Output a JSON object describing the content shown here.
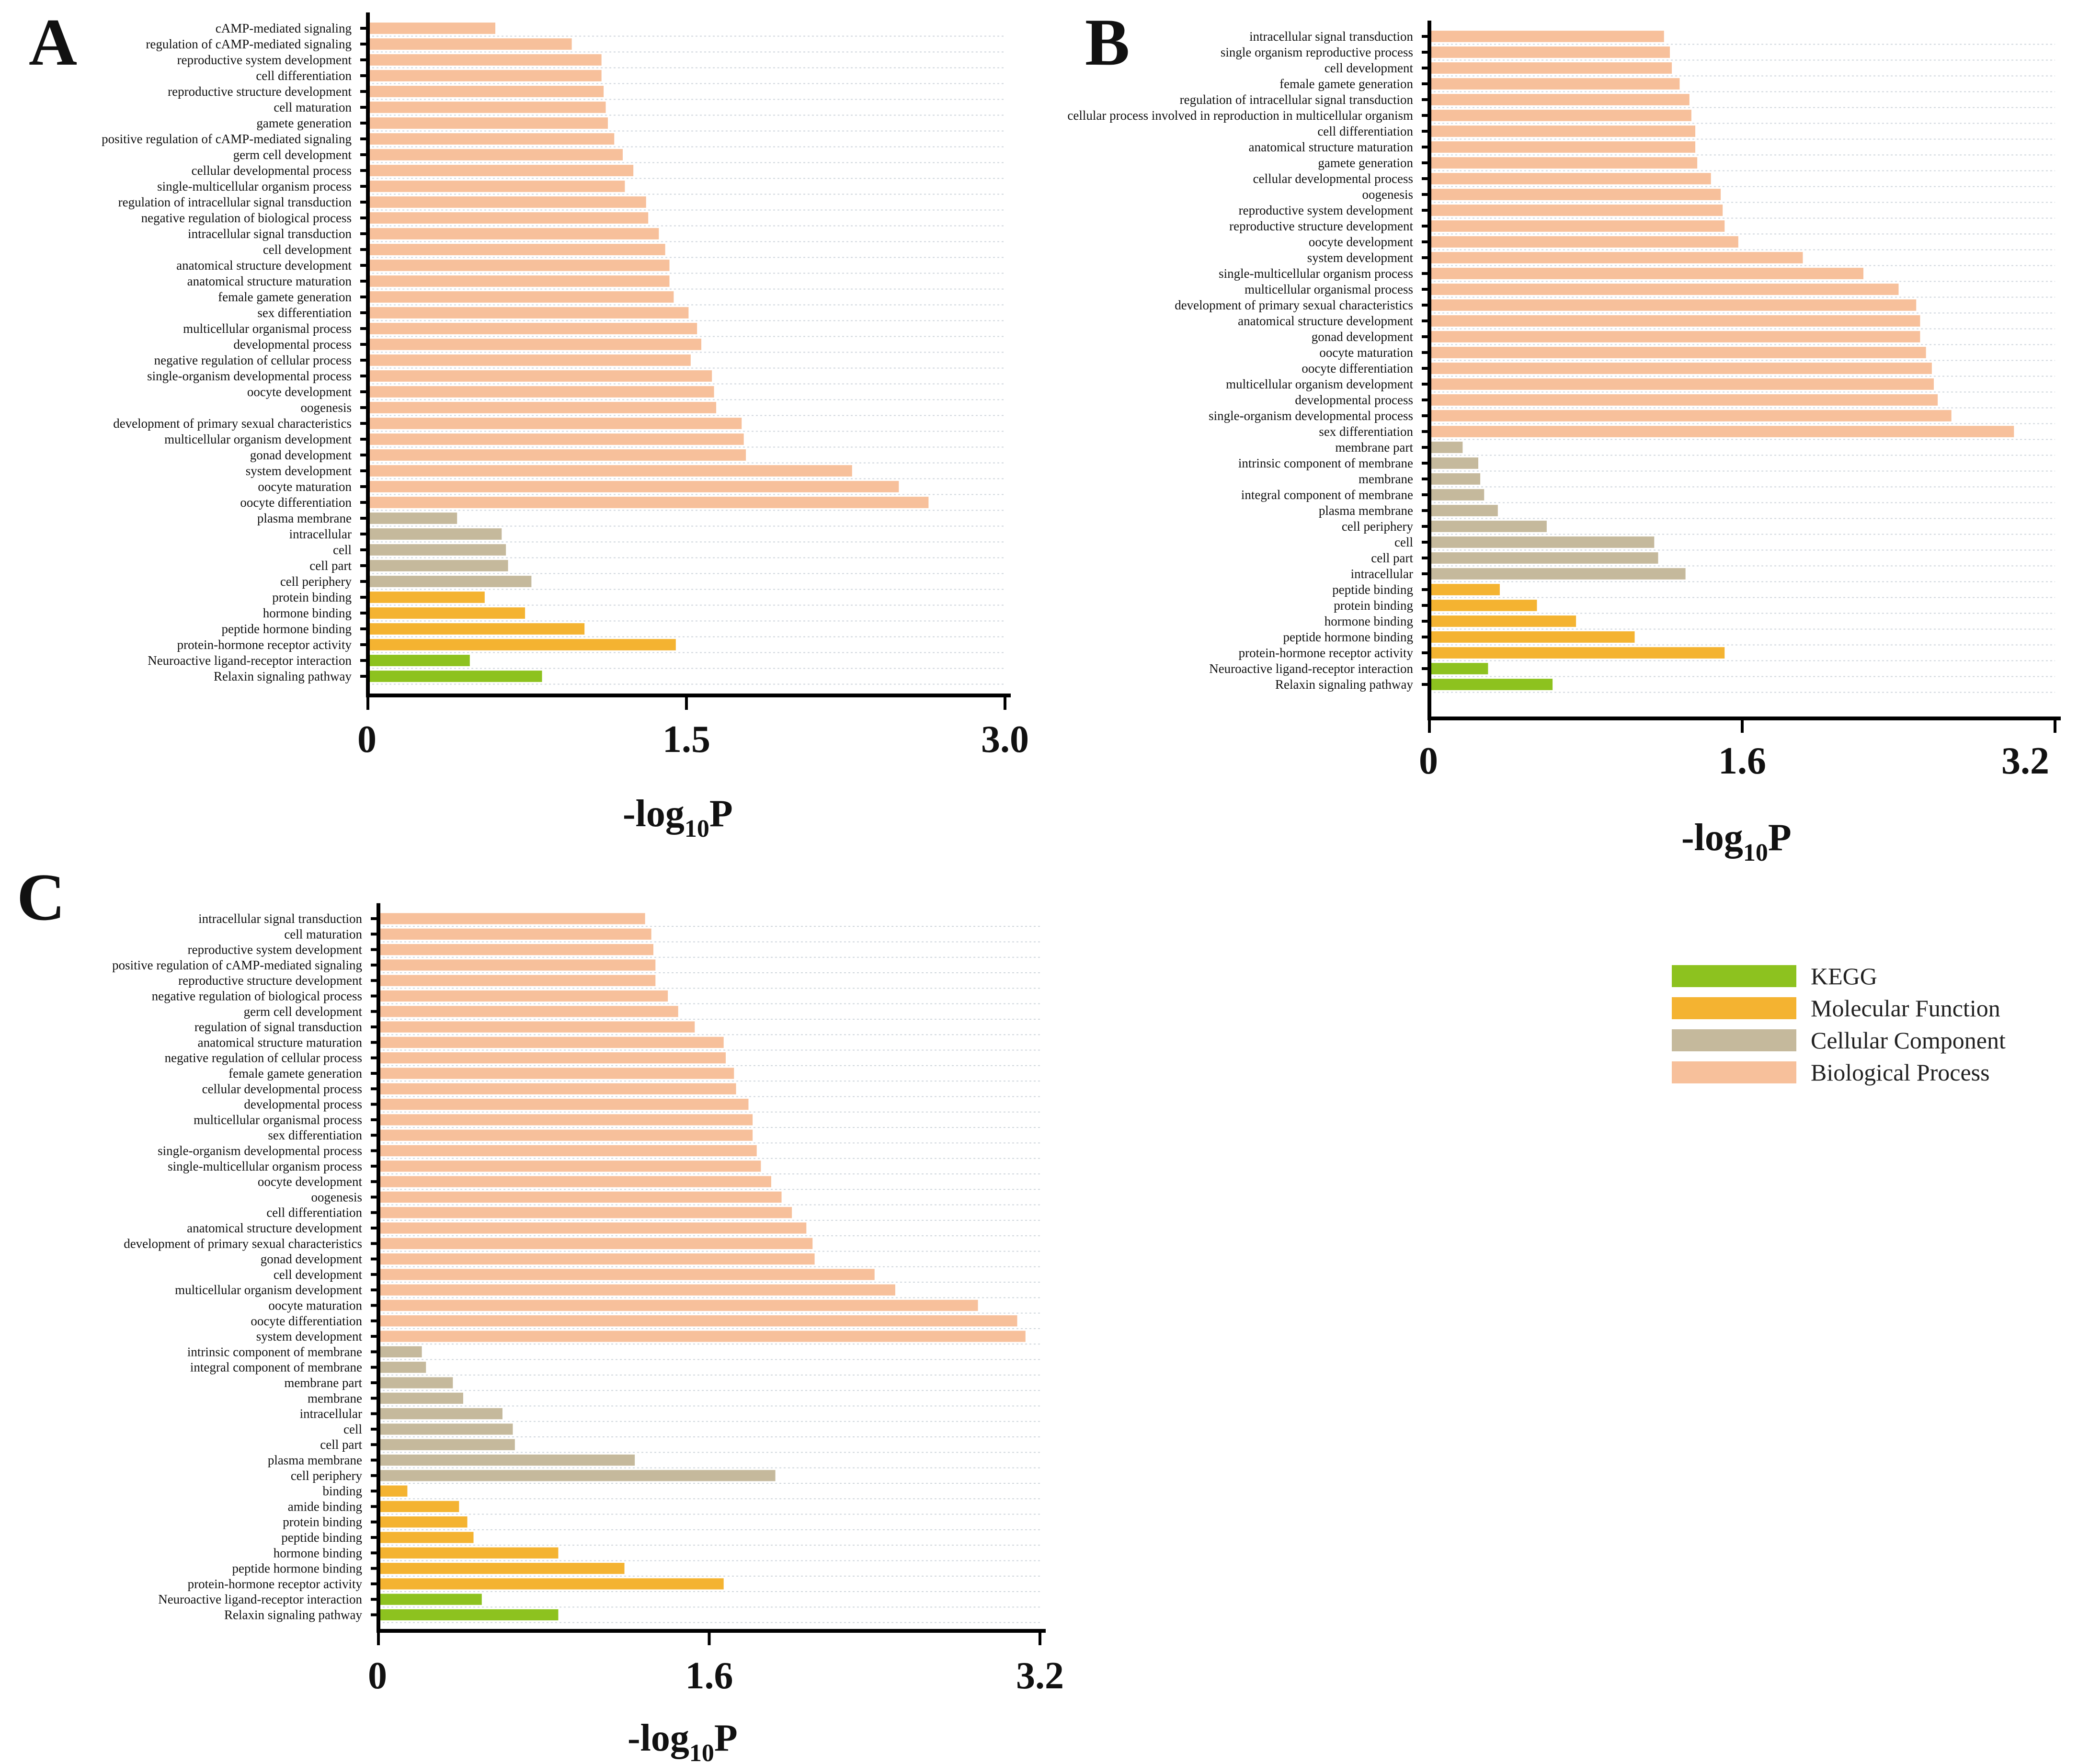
{
  "colors": {
    "KEGG": "#8dc21f",
    "Molecular Function": "#f4b331",
    "Cellular Component": "#c5b99c",
    "Biological Process": "#f7c09b"
  },
  "legend": {
    "entries": [
      "KEGG",
      "Molecular Function",
      "Cellular Component",
      "Biological Process"
    ]
  },
  "chart_data": [
    {
      "panel": "A",
      "type": "bar",
      "orientation": "horizontal",
      "xlabel": "-log10P",
      "xlabel_main": "-log",
      "xlabel_sub": "10",
      "xlabel_tail": "P",
      "xlim": [
        0,
        3.0
      ],
      "ticks": [
        0,
        1.5,
        3.0
      ],
      "tick_labels": [
        "0",
        "1.5",
        "3.0"
      ],
      "bars": [
        {
          "label": "cAMP-mediated signaling",
          "value": 0.6,
          "category": "Biological Process"
        },
        {
          "label": "regulation of cAMP-mediated signaling",
          "value": 0.96,
          "category": "Biological Process"
        },
        {
          "label": "reproductive system development",
          "value": 1.1,
          "category": "Biological Process"
        },
        {
          "label": "cell differentiation",
          "value": 1.1,
          "category": "Biological Process"
        },
        {
          "label": "reproductive structure development",
          "value": 1.11,
          "category": "Biological Process"
        },
        {
          "label": "cell maturation",
          "value": 1.12,
          "category": "Biological Process"
        },
        {
          "label": "gamete generation",
          "value": 1.13,
          "category": "Biological Process"
        },
        {
          "label": "positive regulation of cAMP-mediated signaling",
          "value": 1.16,
          "category": "Biological Process"
        },
        {
          "label": "germ cell development",
          "value": 1.2,
          "category": "Biological Process"
        },
        {
          "label": "cellular developmental process",
          "value": 1.25,
          "category": "Biological Process"
        },
        {
          "label": "single-multicellular organism process",
          "value": 1.21,
          "category": "Biological Process"
        },
        {
          "label": "regulation of intracellular signal transduction",
          "value": 1.31,
          "category": "Biological Process"
        },
        {
          "label": "negative regulation of biological process",
          "value": 1.32,
          "category": "Biological Process"
        },
        {
          "label": "intracellular signal transduction",
          "value": 1.37,
          "category": "Biological Process"
        },
        {
          "label": "cell development",
          "value": 1.4,
          "category": "Biological Process"
        },
        {
          "label": "anatomical structure development",
          "value": 1.42,
          "category": "Biological Process"
        },
        {
          "label": "anatomical structure maturation",
          "value": 1.42,
          "category": "Biological Process"
        },
        {
          "label": "female gamete generation",
          "value": 1.44,
          "category": "Biological Process"
        },
        {
          "label": "sex differentiation",
          "value": 1.51,
          "category": "Biological Process"
        },
        {
          "label": "multicellular organismal process",
          "value": 1.55,
          "category": "Biological Process"
        },
        {
          "label": "developmental process",
          "value": 1.57,
          "category": "Biological Process"
        },
        {
          "label": "negative regulation of cellular process",
          "value": 1.52,
          "category": "Biological Process"
        },
        {
          "label": "single-organism developmental process",
          "value": 1.62,
          "category": "Biological Process"
        },
        {
          "label": "oocyte development",
          "value": 1.63,
          "category": "Biological Process"
        },
        {
          "label": "oogenesis",
          "value": 1.64,
          "category": "Biological Process"
        },
        {
          "label": "development of primary sexual characteristics",
          "value": 1.76,
          "category": "Biological Process"
        },
        {
          "label": "multicellular organism development",
          "value": 1.77,
          "category": "Biological Process"
        },
        {
          "label": "gonad development",
          "value": 1.78,
          "category": "Biological Process"
        },
        {
          "label": "system development",
          "value": 2.28,
          "category": "Biological Process"
        },
        {
          "label": "oocyte maturation",
          "value": 2.5,
          "category": "Biological Process"
        },
        {
          "label": "oocyte differentiation",
          "value": 2.64,
          "category": "Biological Process"
        },
        {
          "label": "plasma membrane",
          "value": 0.42,
          "category": "Cellular Component"
        },
        {
          "label": "intracellular",
          "value": 0.63,
          "category": "Cellular Component"
        },
        {
          "label": "cell",
          "value": 0.65,
          "category": "Cellular Component"
        },
        {
          "label": "cell part",
          "value": 0.66,
          "category": "Cellular Component"
        },
        {
          "label": "cell periphery",
          "value": 0.77,
          "category": "Cellular Component"
        },
        {
          "label": "protein binding",
          "value": 0.55,
          "category": "Molecular Function"
        },
        {
          "label": "hormone binding",
          "value": 0.74,
          "category": "Molecular Function"
        },
        {
          "label": "peptide hormone binding",
          "value": 1.02,
          "category": "Molecular Function"
        },
        {
          "label": "protein-hormone receptor activity",
          "value": 1.45,
          "category": "Molecular Function"
        },
        {
          "label": "Neuroactive ligand-receptor interaction",
          "value": 0.48,
          "category": "KEGG"
        },
        {
          "label": "Relaxin signaling pathway",
          "value": 0.82,
          "category": "KEGG"
        }
      ]
    },
    {
      "panel": "B",
      "type": "bar",
      "orientation": "horizontal",
      "xlabel": "-log10P",
      "xlabel_main": "-log",
      "xlabel_sub": "10",
      "xlabel_tail": "P",
      "xlim": [
        0,
        3.2
      ],
      "ticks": [
        0,
        1.6,
        3.2
      ],
      "tick_labels": [
        "0",
        "1.6",
        "3.2"
      ],
      "bars": [
        {
          "label": "intracellular signal transduction",
          "value": 1.2,
          "category": "Biological Process"
        },
        {
          "label": "single organism reproductive process",
          "value": 1.23,
          "category": "Biological Process"
        },
        {
          "label": "cell development",
          "value": 1.24,
          "category": "Biological Process"
        },
        {
          "label": "female gamete generation",
          "value": 1.28,
          "category": "Biological Process"
        },
        {
          "label": "regulation of intracellular signal transduction",
          "value": 1.33,
          "category": "Biological Process"
        },
        {
          "label": "cellular process involved in reproduction in multicellular organism",
          "value": 1.34,
          "category": "Biological Process"
        },
        {
          "label": "cell differentiation",
          "value": 1.36,
          "category": "Biological Process"
        },
        {
          "label": "anatomical structure maturation",
          "value": 1.36,
          "category": "Biological Process"
        },
        {
          "label": "gamete generation",
          "value": 1.37,
          "category": "Biological Process"
        },
        {
          "label": "cellular developmental process",
          "value": 1.44,
          "category": "Biological Process"
        },
        {
          "label": "oogenesis",
          "value": 1.49,
          "category": "Biological Process"
        },
        {
          "label": "reproductive system development",
          "value": 1.5,
          "category": "Biological Process"
        },
        {
          "label": "reproductive structure development",
          "value": 1.51,
          "category": "Biological Process"
        },
        {
          "label": "oocyte development",
          "value": 1.58,
          "category": "Biological Process"
        },
        {
          "label": "system development",
          "value": 1.91,
          "category": "Biological Process"
        },
        {
          "label": "single-multicellular organism process",
          "value": 2.22,
          "category": "Biological Process"
        },
        {
          "label": "multicellular organismal process",
          "value": 2.4,
          "category": "Biological Process"
        },
        {
          "label": "development of primary sexual characteristics",
          "value": 2.49,
          "category": "Biological Process"
        },
        {
          "label": "anatomical structure development",
          "value": 2.51,
          "category": "Biological Process"
        },
        {
          "label": "gonad development",
          "value": 2.51,
          "category": "Biological Process"
        },
        {
          "label": "oocyte maturation",
          "value": 2.54,
          "category": "Biological Process"
        },
        {
          "label": "oocyte differentiation",
          "value": 2.57,
          "category": "Biological Process"
        },
        {
          "label": "multicellular organism development",
          "value": 2.58,
          "category": "Biological Process"
        },
        {
          "label": "developmental process",
          "value": 2.6,
          "category": "Biological Process"
        },
        {
          "label": "single-organism developmental process",
          "value": 2.67,
          "category": "Biological Process"
        },
        {
          "label": "sex differentiation",
          "value": 2.99,
          "category": "Biological Process"
        },
        {
          "label": "membrane part",
          "value": 0.17,
          "category": "Cellular Component"
        },
        {
          "label": "intrinsic component of membrane",
          "value": 0.25,
          "category": "Cellular Component"
        },
        {
          "label": "membrane",
          "value": 0.26,
          "category": "Cellular Component"
        },
        {
          "label": "integral component of membrane",
          "value": 0.28,
          "category": "Cellular Component"
        },
        {
          "label": "plasma membrane",
          "value": 0.35,
          "category": "Cellular Component"
        },
        {
          "label": "cell periphery",
          "value": 0.6,
          "category": "Cellular Component"
        },
        {
          "label": "cell",
          "value": 1.15,
          "category": "Cellular Component"
        },
        {
          "label": "cell part",
          "value": 1.17,
          "category": "Cellular Component"
        },
        {
          "label": "intracellular",
          "value": 1.31,
          "category": "Cellular Component"
        },
        {
          "label": "peptide binding",
          "value": 0.36,
          "category": "Molecular Function"
        },
        {
          "label": "protein binding",
          "value": 0.55,
          "category": "Molecular Function"
        },
        {
          "label": "hormone binding",
          "value": 0.75,
          "category": "Molecular Function"
        },
        {
          "label": "peptide hormone binding",
          "value": 1.05,
          "category": "Molecular Function"
        },
        {
          "label": "protein-hormone receptor activity",
          "value": 1.51,
          "category": "Molecular Function"
        },
        {
          "label": "Neuroactive ligand-receptor interaction",
          "value": 0.3,
          "category": "KEGG"
        },
        {
          "label": "Relaxin signaling pathway",
          "value": 0.63,
          "category": "KEGG"
        }
      ]
    },
    {
      "panel": "C",
      "type": "bar",
      "orientation": "horizontal",
      "xlabel": "-log10P",
      "xlabel_main": "-log",
      "xlabel_sub": "10",
      "xlabel_tail": "P",
      "xlim": [
        0,
        3.2
      ],
      "ticks": [
        0,
        1.6,
        3.2
      ],
      "tick_labels": [
        "0",
        "1.6",
        "3.2"
      ],
      "bars": [
        {
          "label": "intracellular signal transduction",
          "value": 1.29,
          "category": "Biological Process"
        },
        {
          "label": "cell maturation",
          "value": 1.32,
          "category": "Biological Process"
        },
        {
          "label": "reproductive system development",
          "value": 1.33,
          "category": "Biological Process"
        },
        {
          "label": "positive regulation of cAMP-mediated signaling",
          "value": 1.34,
          "category": "Biological Process"
        },
        {
          "label": "reproductive structure development",
          "value": 1.34,
          "category": "Biological Process"
        },
        {
          "label": "negative regulation of biological process",
          "value": 1.4,
          "category": "Biological Process"
        },
        {
          "label": "germ cell development",
          "value": 1.45,
          "category": "Biological Process"
        },
        {
          "label": "regulation of signal transduction",
          "value": 1.53,
          "category": "Biological Process"
        },
        {
          "label": "anatomical structure maturation",
          "value": 1.67,
          "category": "Biological Process"
        },
        {
          "label": "negative regulation of cellular process",
          "value": 1.68,
          "category": "Biological Process"
        },
        {
          "label": "female gamete generation",
          "value": 1.72,
          "category": "Biological Process"
        },
        {
          "label": "cellular developmental process",
          "value": 1.73,
          "category": "Biological Process"
        },
        {
          "label": "developmental process",
          "value": 1.79,
          "category": "Biological Process"
        },
        {
          "label": "multicellular organismal process",
          "value": 1.81,
          "category": "Biological Process"
        },
        {
          "label": "sex differentiation",
          "value": 1.81,
          "category": "Biological Process"
        },
        {
          "label": "single-organism developmental process",
          "value": 1.83,
          "category": "Biological Process"
        },
        {
          "label": "single-multicellular organism process",
          "value": 1.85,
          "category": "Biological Process"
        },
        {
          "label": "oocyte development",
          "value": 1.9,
          "category": "Biological Process"
        },
        {
          "label": "oogenesis",
          "value": 1.95,
          "category": "Biological Process"
        },
        {
          "label": "cell differentiation",
          "value": 2.0,
          "category": "Biological Process"
        },
        {
          "label": "anatomical structure development",
          "value": 2.07,
          "category": "Biological Process"
        },
        {
          "label": "development of primary sexual characteristics",
          "value": 2.1,
          "category": "Biological Process"
        },
        {
          "label": "gonad development",
          "value": 2.11,
          "category": "Biological Process"
        },
        {
          "label": "cell development",
          "value": 2.4,
          "category": "Biological Process"
        },
        {
          "label": "multicellular organism development",
          "value": 2.5,
          "category": "Biological Process"
        },
        {
          "label": "oocyte maturation",
          "value": 2.9,
          "category": "Biological Process"
        },
        {
          "label": "oocyte differentiation",
          "value": 3.09,
          "category": "Biological Process"
        },
        {
          "label": "system development",
          "value": 3.13,
          "category": "Biological Process"
        },
        {
          "label": "intrinsic component of membrane",
          "value": 0.21,
          "category": "Cellular Component"
        },
        {
          "label": "integral component of membrane",
          "value": 0.23,
          "category": "Cellular Component"
        },
        {
          "label": "membrane part",
          "value": 0.36,
          "category": "Cellular Component"
        },
        {
          "label": "membrane",
          "value": 0.41,
          "category": "Cellular Component"
        },
        {
          "label": "intracellular",
          "value": 0.6,
          "category": "Cellular Component"
        },
        {
          "label": "cell",
          "value": 0.65,
          "category": "Cellular Component"
        },
        {
          "label": "cell part",
          "value": 0.66,
          "category": "Cellular Component"
        },
        {
          "label": "plasma membrane",
          "value": 1.24,
          "category": "Cellular Component"
        },
        {
          "label": "cell periphery",
          "value": 1.92,
          "category": "Cellular Component"
        },
        {
          "label": "binding",
          "value": 0.14,
          "category": "Molecular Function"
        },
        {
          "label": "amide binding",
          "value": 0.39,
          "category": "Molecular Function"
        },
        {
          "label": "protein binding",
          "value": 0.43,
          "category": "Molecular Function"
        },
        {
          "label": "peptide binding",
          "value": 0.46,
          "category": "Molecular Function"
        },
        {
          "label": "hormone binding",
          "value": 0.87,
          "category": "Molecular Function"
        },
        {
          "label": "peptide hormone binding",
          "value": 1.19,
          "category": "Molecular Function"
        },
        {
          "label": "protein-hormone receptor activity",
          "value": 1.67,
          "category": "Molecular Function"
        },
        {
          "label": "Neuroactive ligand-receptor interaction",
          "value": 0.5,
          "category": "KEGG"
        },
        {
          "label": "Relaxin signaling pathway",
          "value": 0.87,
          "category": "KEGG"
        }
      ]
    }
  ]
}
